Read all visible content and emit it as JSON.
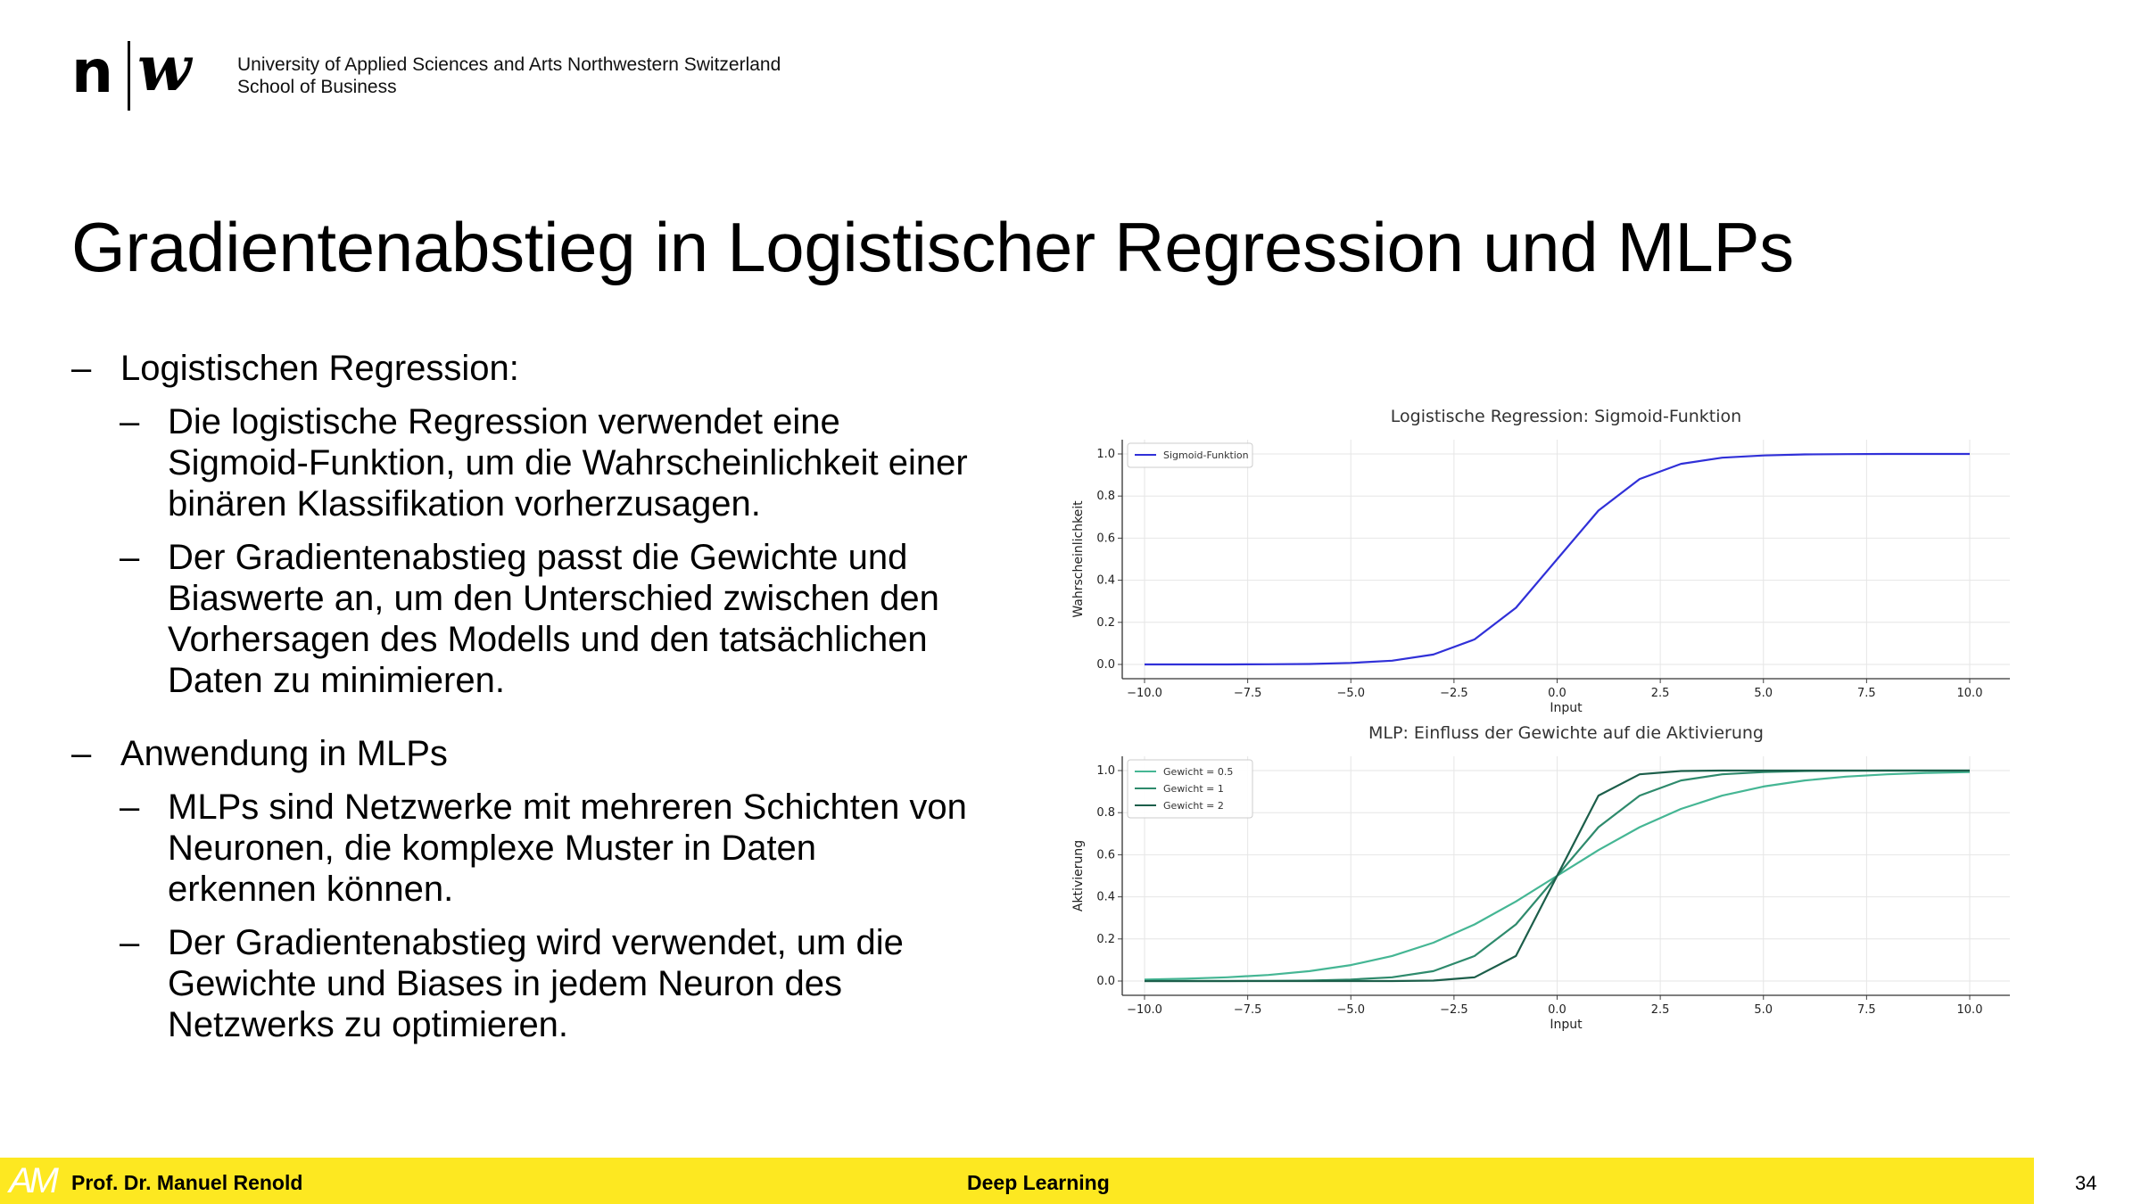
{
  "header": {
    "logo_left": "n",
    "logo_right": "w",
    "institution": "University of Applied Sciences and Arts Northwestern Switzerland",
    "school": "School of Business"
  },
  "slide": {
    "title": "Gradientenabstieg in Logistischer Regression und MLPs",
    "bullets": [
      {
        "text": "Logistischen Regression:",
        "sub": [
          [
            "Die logistische Regression verwendet eine",
            "Sigmoid-Funktion, um die Wahrscheinlichkeit einer",
            "binären Klassifikation vorherzusagen."
          ],
          [
            "Der Gradientenabstieg passt die Gewichte und",
            "Biaswerte an, um den Unterschied zwischen den",
            "Vorhersagen des Modells und den tatsächlichen",
            "Daten zu minimieren."
          ]
        ]
      },
      {
        "text": "Anwendung in MLPs",
        "sub": [
          [
            "MLPs sind Netzwerke mit mehreren Schichten von",
            "Neuronen, die komplexe Muster in Daten",
            "erkennen können."
          ],
          [
            "Der Gradientenabstieg wird verwendet, um die",
            "Gewichte und Biases in jedem Neuron des",
            "Netzwerks zu optimieren."
          ]
        ]
      }
    ],
    "dash": "–"
  },
  "chart_data": [
    {
      "type": "line",
      "title": "Logistische Regression: Sigmoid-Funktion",
      "xlabel": "Input",
      "ylabel": "Wahrscheinlichkeit",
      "xlim": [
        -10.0,
        10.0
      ],
      "ylim": [
        0.0,
        1.0
      ],
      "xticks": [
        "−10.0",
        "−7.5",
        "−5.0",
        "−2.5",
        "0.0",
        "2.5",
        "5.0",
        "7.5",
        "10.0"
      ],
      "yticks": [
        "0.0",
        "0.2",
        "0.4",
        "0.6",
        "0.8",
        "1.0"
      ],
      "grid": true,
      "legend_position": "top-left",
      "x": [
        -10,
        -9,
        -8,
        -7,
        -6,
        -5,
        -4,
        -3,
        -2,
        -1,
        0,
        1,
        2,
        3,
        4,
        5,
        6,
        7,
        8,
        9,
        10
      ],
      "series": [
        {
          "name": "Sigmoid-Funktion",
          "color": "#3030d8",
          "values": [
            0.0,
            0.0,
            0.0,
            0.001,
            0.002,
            0.007,
            0.018,
            0.047,
            0.119,
            0.269,
            0.5,
            0.731,
            0.881,
            0.953,
            0.982,
            0.993,
            0.998,
            0.999,
            1.0,
            1.0,
            1.0
          ]
        }
      ]
    },
    {
      "type": "line",
      "title": "MLP: Einfluss der Gewichte auf die Aktivierung",
      "xlabel": "Input",
      "ylabel": "Aktivierung",
      "xlim": [
        -10.0,
        10.0
      ],
      "ylim": [
        0.0,
        1.0
      ],
      "xticks": [
        "−10.0",
        "−7.5",
        "−5.0",
        "−2.5",
        "0.0",
        "2.5",
        "5.0",
        "7.5",
        "10.0"
      ],
      "yticks": [
        "0.0",
        "0.2",
        "0.4",
        "0.6",
        "0.8",
        "1.0"
      ],
      "grid": true,
      "legend_position": "top-left",
      "x": [
        -10,
        -9,
        -8,
        -7,
        -6,
        -5,
        -4,
        -3,
        -2,
        -1,
        0,
        1,
        2,
        3,
        4,
        5,
        6,
        7,
        8,
        9,
        10
      ],
      "series": [
        {
          "name": "Gewicht = 0.5",
          "color": "#45b694",
          "values": [
            0.007,
            0.011,
            0.018,
            0.029,
            0.047,
            0.076,
            0.119,
            0.182,
            0.269,
            0.378,
            0.5,
            0.622,
            0.731,
            0.818,
            0.881,
            0.924,
            0.953,
            0.971,
            0.982,
            0.989,
            0.993
          ]
        },
        {
          "name": "Gewicht = 1",
          "color": "#2e8a6c",
          "values": [
            0.0,
            0.0,
            0.0,
            0.001,
            0.002,
            0.007,
            0.018,
            0.047,
            0.119,
            0.269,
            0.5,
            0.731,
            0.881,
            0.953,
            0.982,
            0.993,
            0.998,
            0.999,
            1.0,
            1.0,
            1.0
          ]
        },
        {
          "name": "Gewicht = 2",
          "color": "#1c5e4a",
          "values": [
            0.0,
            0.0,
            0.0,
            0.0,
            0.0,
            0.0,
            0.0,
            0.002,
            0.018,
            0.119,
            0.5,
            0.881,
            0.982,
            0.998,
            1.0,
            1.0,
            1.0,
            1.0,
            1.0,
            1.0,
            1.0
          ]
        }
      ]
    }
  ],
  "footer": {
    "logo": "AM",
    "author": "Prof. Dr. Manuel Renold",
    "course": "Deep Learning",
    "page_number": "34"
  }
}
